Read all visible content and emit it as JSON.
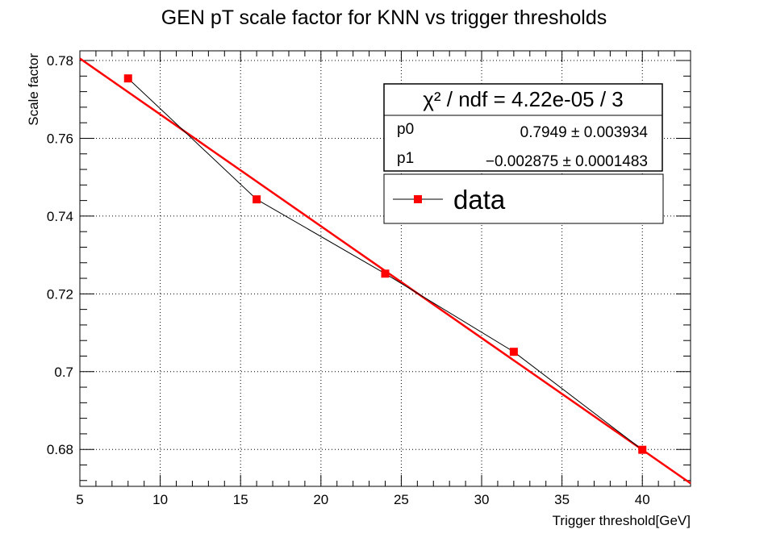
{
  "chart_data": {
    "type": "line",
    "title": "GEN pT scale factor for KNN vs trigger thresholds",
    "xlabel": "Trigger threshold[GeV]",
    "ylabel": "Scale factor",
    "xlim": [
      5,
      43
    ],
    "ylim": [
      0.6705,
      0.7825
    ],
    "x_ticks": [
      5,
      10,
      15,
      20,
      25,
      30,
      35,
      40
    ],
    "x_tick_labels": [
      "5",
      "10",
      "15",
      "20",
      "25",
      "30",
      "35",
      "40"
    ],
    "y_ticks": [
      0.68,
      0.7,
      0.72,
      0.74,
      0.76,
      0.78
    ],
    "y_tick_labels": [
      "0.68",
      "0.7",
      "0.72",
      "0.74",
      "0.76",
      "0.78"
    ],
    "grid": true,
    "series": [
      {
        "name": "data",
        "x": [
          8,
          16,
          24,
          32,
          40
        ],
        "y": [
          0.7754,
          0.7443,
          0.7252,
          0.7051,
          0.6799
        ],
        "color": "#ff0000",
        "line_color": "#000000",
        "marker": "square"
      }
    ],
    "fit": {
      "p0": 0.7949,
      "p1": -0.002875,
      "color": "#ff0000"
    },
    "stats": {
      "chi2_label": "χ² / ndf = 4.22e-05 / 3",
      "rows": [
        {
          "name": "p0",
          "value": "0.7949 ± 0.003934"
        },
        {
          "name": "p1",
          "value": "−0.002875 ± 0.0001483"
        }
      ]
    },
    "legend": {
      "placement": "top-right",
      "entries": [
        "data"
      ]
    }
  }
}
